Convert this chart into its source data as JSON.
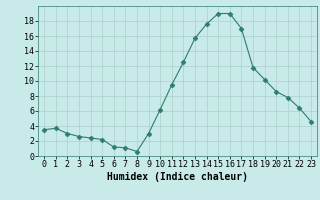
{
  "x": [
    0,
    1,
    2,
    3,
    4,
    5,
    6,
    7,
    8,
    9,
    10,
    11,
    12,
    13,
    14,
    15,
    16,
    17,
    18,
    19,
    20,
    21,
    22,
    23
  ],
  "y": [
    3.5,
    3.7,
    3.0,
    2.6,
    2.4,
    2.2,
    1.2,
    1.1,
    0.6,
    3.0,
    6.2,
    9.5,
    12.5,
    15.7,
    17.6,
    19.0,
    19.0,
    17.0,
    11.8,
    10.2,
    8.6,
    7.8,
    6.4,
    4.6
  ],
  "line_color": "#2e7d6e",
  "marker": "D",
  "marker_size": 2.5,
  "bg_color": "#c8eae8",
  "grid_color": "#b0d4d0",
  "xlabel": "Humidex (Indice chaleur)",
  "xlabel_fontsize": 7,
  "tick_fontsize": 6,
  "ylim": [
    0,
    20
  ],
  "xlim": [
    -0.5,
    23.5
  ],
  "yticks": [
    0,
    2,
    4,
    6,
    8,
    10,
    12,
    14,
    16,
    18
  ],
  "xticks": [
    0,
    1,
    2,
    3,
    4,
    5,
    6,
    7,
    8,
    9,
    10,
    11,
    12,
    13,
    14,
    15,
    16,
    17,
    18,
    19,
    20,
    21,
    22,
    23
  ]
}
